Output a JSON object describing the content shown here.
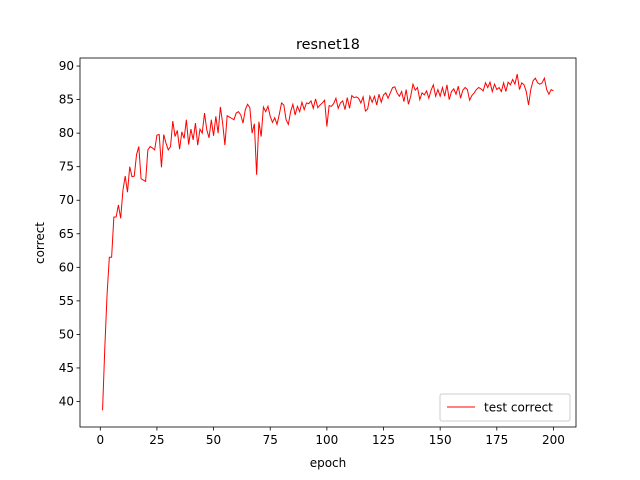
{
  "chart_data": {
    "type": "line",
    "title": "resnet18",
    "xlabel": "epoch",
    "ylabel": "correct",
    "x": [
      1,
      2,
      3,
      4,
      5,
      6,
      7,
      8,
      9,
      10,
      11,
      12,
      13,
      14,
      15,
      16,
      17,
      18,
      19,
      20,
      21,
      22,
      23,
      24,
      25,
      26,
      27,
      28,
      29,
      30,
      31,
      32,
      33,
      34,
      35,
      36,
      37,
      38,
      39,
      40,
      41,
      42,
      43,
      44,
      45,
      46,
      47,
      48,
      49,
      50,
      51,
      52,
      53,
      54,
      55,
      56,
      57,
      58,
      59,
      60,
      61,
      62,
      63,
      64,
      65,
      66,
      67,
      68,
      69,
      70,
      71,
      72,
      73,
      74,
      75,
      76,
      77,
      78,
      79,
      80,
      81,
      82,
      83,
      84,
      85,
      86,
      87,
      88,
      89,
      90,
      91,
      92,
      93,
      94,
      95,
      96,
      97,
      98,
      99,
      100,
      101,
      102,
      103,
      104,
      105,
      106,
      107,
      108,
      109,
      110,
      111,
      112,
      113,
      114,
      115,
      116,
      117,
      118,
      119,
      120,
      121,
      122,
      123,
      124,
      125,
      126,
      127,
      128,
      129,
      130,
      131,
      132,
      133,
      134,
      135,
      136,
      137,
      138,
      139,
      140,
      141,
      142,
      143,
      144,
      145,
      146,
      147,
      148,
      149,
      150,
      151,
      152,
      153,
      154,
      155,
      156,
      157,
      158,
      159,
      160,
      161,
      162,
      163,
      164,
      165,
      166,
      167,
      168,
      169,
      170,
      171,
      172,
      173,
      174,
      175,
      176,
      177,
      178,
      179,
      180,
      181,
      182,
      183,
      184,
      185,
      186,
      187,
      188,
      189,
      190,
      191,
      192,
      193,
      194,
      195,
      196,
      197,
      198,
      199,
      200
    ],
    "series": [
      {
        "name": "test correct",
        "color": "#ff0000",
        "values": [
          38.7,
          48,
          56,
          61.5,
          61.5,
          67.5,
          67.5,
          69.3,
          67.3,
          71.5,
          73.6,
          71.2,
          75,
          73.5,
          73.6,
          76.8,
          78,
          73.2,
          73,
          72.8,
          77.5,
          78,
          77.8,
          77.5,
          79.7,
          79.8,
          74.9,
          79.8,
          78.5,
          77.5,
          78,
          81.8,
          79.5,
          80.4,
          77.6,
          80.2,
          79.2,
          82,
          78.3,
          80.6,
          79,
          81.5,
          78.2,
          80.6,
          80,
          83,
          80.5,
          79.3,
          82,
          79.6,
          82.5,
          80,
          83.9,
          81.5,
          78.2,
          82.6,
          82.4,
          82.2,
          82,
          83,
          83.2,
          82.7,
          81.5,
          83.5,
          84.3,
          83.8,
          80,
          81.4,
          73.8,
          81.7,
          79.5,
          83.9,
          83.2,
          84,
          82.5,
          81.6,
          82.3,
          81.3,
          82.8,
          84.5,
          84.2,
          82,
          81.3,
          83.2,
          84.3,
          82.7,
          84,
          83.2,
          84.6,
          83.5,
          84.5,
          84.4,
          84.8,
          83.7,
          85.1,
          83.8,
          84.2,
          84.5,
          84.9,
          81,
          84.1,
          84,
          84.4,
          85.2,
          83.7,
          84.5,
          84.8,
          83.5,
          85.3,
          83.7,
          85.6,
          85.3,
          85.4,
          85.2,
          84.5,
          85.4,
          83.3,
          83.6,
          85.5,
          84.6,
          85.5,
          84.2,
          85.8,
          84.6,
          85.7,
          86,
          85.2,
          86,
          86.8,
          86.9,
          86,
          85.5,
          86.2,
          84.7,
          86.5,
          84.3,
          85.5,
          87.3,
          86.4,
          86.8,
          85,
          86,
          85.7,
          86.3,
          85.2,
          86.4,
          87.2,
          85.5,
          86.5,
          85.5,
          86.8,
          85.5,
          87.2,
          85,
          86.2,
          86.6,
          85.8,
          87,
          85.2,
          86.4,
          86.8,
          86.5,
          84.9,
          85.6,
          86,
          86.5,
          86.8,
          86.6,
          86.3,
          87.5,
          86.8,
          87.6,
          86.2,
          87.3,
          86.5,
          86.8,
          86.2,
          87.5,
          86.2,
          87.6,
          87.2,
          88,
          87.3,
          88.8,
          86.5,
          87.5,
          87.2,
          86.2,
          84.2,
          86.5,
          87.8,
          88.2,
          87.5,
          87.3,
          87.5,
          88.2,
          86.5,
          85.8,
          86.5,
          86.3
        ]
      }
    ],
    "xlim": [
      -8.95,
      209.95
    ],
    "ylim": [
      36.2,
      91.2
    ],
    "xticks": [
      0,
      25,
      50,
      75,
      100,
      125,
      150,
      175,
      200
    ],
    "yticks": [
      40,
      45,
      50,
      55,
      60,
      65,
      70,
      75,
      80,
      85,
      90
    ],
    "legend": "lower right"
  }
}
